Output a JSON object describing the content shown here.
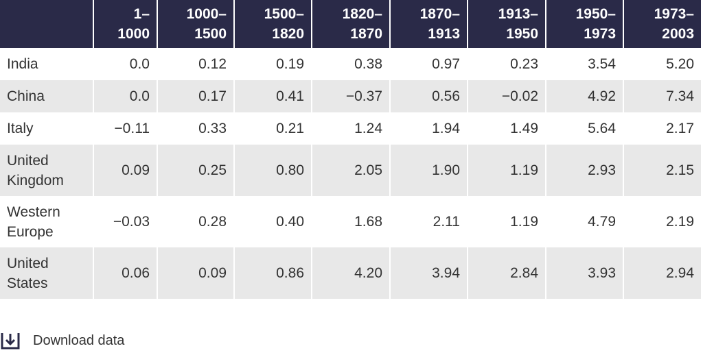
{
  "table": {
    "corner": "",
    "columns": [
      [
        "1–",
        "1000"
      ],
      [
        "1000–",
        "1500"
      ],
      [
        "1500–",
        "1820"
      ],
      [
        "1820–",
        "1870"
      ],
      [
        "1870–",
        "1913"
      ],
      [
        "1913–",
        "1950"
      ],
      [
        "1950–",
        "1973"
      ],
      [
        "1973–",
        "2003"
      ]
    ],
    "rows": [
      {
        "label": [
          "India"
        ],
        "values": [
          "0.0",
          "0.12",
          "0.19",
          "0.38",
          "0.97",
          "0.23",
          "3.54",
          "5.20"
        ]
      },
      {
        "label": [
          "China"
        ],
        "values": [
          "0.0",
          "0.17",
          "0.41",
          "−0.37",
          "0.56",
          "−0.02",
          "4.92",
          "7.34"
        ]
      },
      {
        "label": [
          "Italy"
        ],
        "values": [
          "−0.11",
          "0.33",
          "0.21",
          "1.24",
          "1.94",
          "1.49",
          "5.64",
          "2.17"
        ]
      },
      {
        "label": [
          "United",
          "Kingdom"
        ],
        "values": [
          "0.09",
          "0.25",
          "0.80",
          "2.05",
          "1.90",
          "1.19",
          "2.93",
          "2.15"
        ]
      },
      {
        "label": [
          "Western",
          "Europe"
        ],
        "values": [
          "−0.03",
          "0.28",
          "0.40",
          "1.68",
          "2.11",
          "1.19",
          "4.79",
          "2.19"
        ]
      },
      {
        "label": [
          "United",
          "States"
        ],
        "values": [
          "0.06",
          "0.09",
          "0.86",
          "4.20",
          "3.94",
          "2.84",
          "3.93",
          "2.94"
        ]
      }
    ]
  },
  "download": {
    "label": "Download data",
    "icon": "download-icon"
  },
  "colors": {
    "header_bg": "#2a2a48",
    "stripe_bg": "#e8e8e8",
    "text": "#333333"
  }
}
